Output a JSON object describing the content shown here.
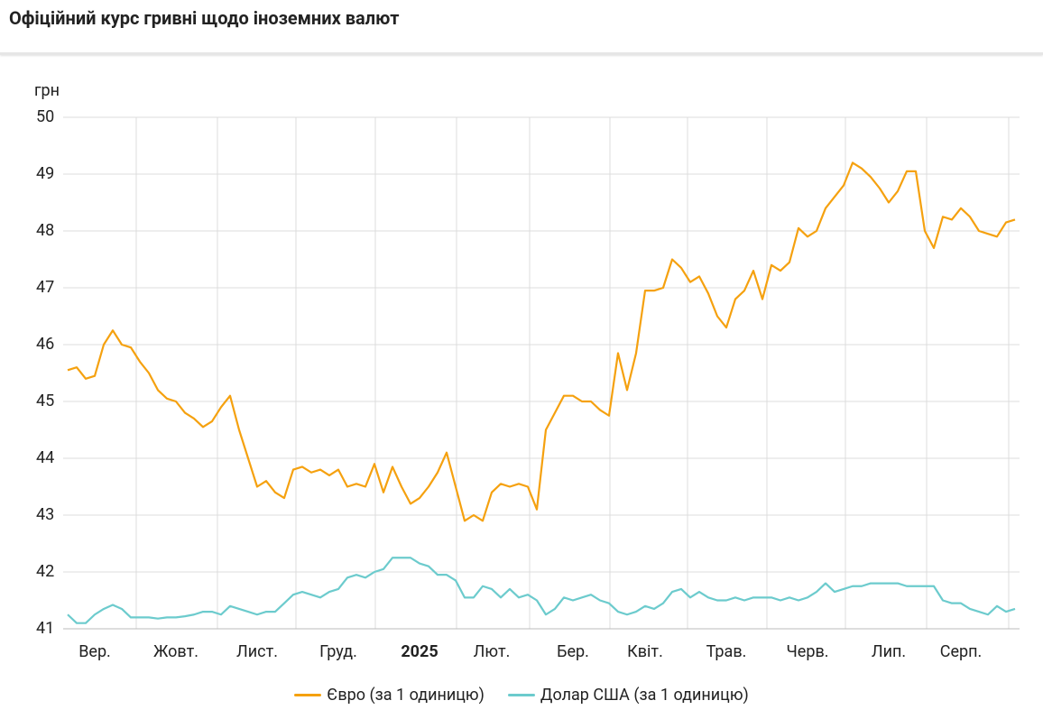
{
  "chart_data": {
    "type": "line",
    "title": "Офіційний курс гривні щодо іноземних валют",
    "y_label": "грн",
    "ylim": [
      41,
      50
    ],
    "yticks": [
      41,
      42,
      43,
      44,
      45,
      46,
      47,
      48,
      49,
      50
    ],
    "grid": true,
    "categories": [
      null,
      null,
      null,
      "Вер.",
      null,
      null,
      null,
      null,
      null,
      null,
      null,
      null,
      "Жовт.",
      null,
      null,
      null,
      null,
      null,
      null,
      null,
      null,
      "Лист.",
      null,
      null,
      null,
      null,
      null,
      null,
      null,
      null,
      "Груд.",
      null,
      null,
      null,
      null,
      null,
      null,
      null,
      null,
      "2025",
      null,
      null,
      null,
      null,
      null,
      null,
      null,
      "Лют.",
      null,
      null,
      null,
      null,
      null,
      null,
      null,
      null,
      "Бер.",
      null,
      null,
      null,
      null,
      null,
      null,
      null,
      "Квіт.",
      null,
      null,
      null,
      null,
      null,
      null,
      null,
      null,
      "Трав.",
      null,
      null,
      null,
      null,
      null,
      null,
      null,
      null,
      "Черв.",
      null,
      null,
      null,
      null,
      null,
      null,
      null,
      null,
      "Лип.",
      null,
      null,
      null,
      null,
      null,
      null,
      null,
      "Серп.",
      null,
      null,
      null,
      null,
      null,
      null
    ],
    "series": [
      {
        "name": "Євро (за 1 одиницю)",
        "color": "#f5a10f",
        "values": [
          45.55,
          45.6,
          45.4,
          45.45,
          46.0,
          46.25,
          46.0,
          45.95,
          45.7,
          45.5,
          45.2,
          45.05,
          45.0,
          44.8,
          44.7,
          44.55,
          44.65,
          44.9,
          45.1,
          44.5,
          44.0,
          43.5,
          43.6,
          43.4,
          43.3,
          43.8,
          43.85,
          43.75,
          43.8,
          43.7,
          43.8,
          43.5,
          43.55,
          43.5,
          43.9,
          43.4,
          43.85,
          43.5,
          43.2,
          43.3,
          43.5,
          43.75,
          44.1,
          43.5,
          42.9,
          43.0,
          42.9,
          43.4,
          43.55,
          43.5,
          43.55,
          43.5,
          43.1,
          44.5,
          44.8,
          45.1,
          45.1,
          45.0,
          45.0,
          44.85,
          44.75,
          45.85,
          45.2,
          45.85,
          46.95,
          46.95,
          47.0,
          47.5,
          47.35,
          47.1,
          47.2,
          46.9,
          46.5,
          46.3,
          46.8,
          46.95,
          47.3,
          46.8,
          47.4,
          47.3,
          47.45,
          48.05,
          47.9,
          48.0,
          48.4,
          48.6,
          48.8,
          49.2,
          49.1,
          48.95,
          48.75,
          48.5,
          48.7,
          49.05,
          49.05,
          48.0,
          47.7,
          48.25,
          48.2,
          48.4,
          48.25,
          48.0,
          47.95,
          47.9,
          48.15,
          48.2
        ]
      },
      {
        "name": "Долар США (за 1 одиницю)",
        "color": "#6ccbcd",
        "values": [
          41.25,
          41.1,
          41.1,
          41.25,
          41.35,
          41.42,
          41.35,
          41.2,
          41.2,
          41.2,
          41.18,
          41.2,
          41.2,
          41.22,
          41.25,
          41.3,
          41.3,
          41.25,
          41.4,
          41.35,
          41.3,
          41.25,
          41.3,
          41.3,
          41.45,
          41.6,
          41.65,
          41.6,
          41.55,
          41.65,
          41.7,
          41.9,
          41.95,
          41.9,
          42.0,
          42.05,
          42.25,
          42.25,
          42.25,
          42.15,
          42.1,
          41.95,
          41.95,
          41.85,
          41.55,
          41.55,
          41.75,
          41.7,
          41.55,
          41.7,
          41.55,
          41.6,
          41.5,
          41.25,
          41.35,
          41.55,
          41.5,
          41.55,
          41.6,
          41.5,
          41.45,
          41.3,
          41.25,
          41.3,
          41.4,
          41.35,
          41.45,
          41.65,
          41.7,
          41.55,
          41.65,
          41.55,
          41.5,
          41.5,
          41.55,
          41.5,
          41.55,
          41.55,
          41.55,
          41.5,
          41.55,
          41.5,
          41.55,
          41.65,
          41.8,
          41.65,
          41.7,
          41.75,
          41.75,
          41.8,
          41.8,
          41.8,
          41.8,
          41.75,
          41.75,
          41.75,
          41.75,
          41.5,
          41.45,
          41.45,
          41.35,
          41.3,
          41.25,
          41.4,
          41.3,
          41.35
        ]
      }
    ]
  }
}
